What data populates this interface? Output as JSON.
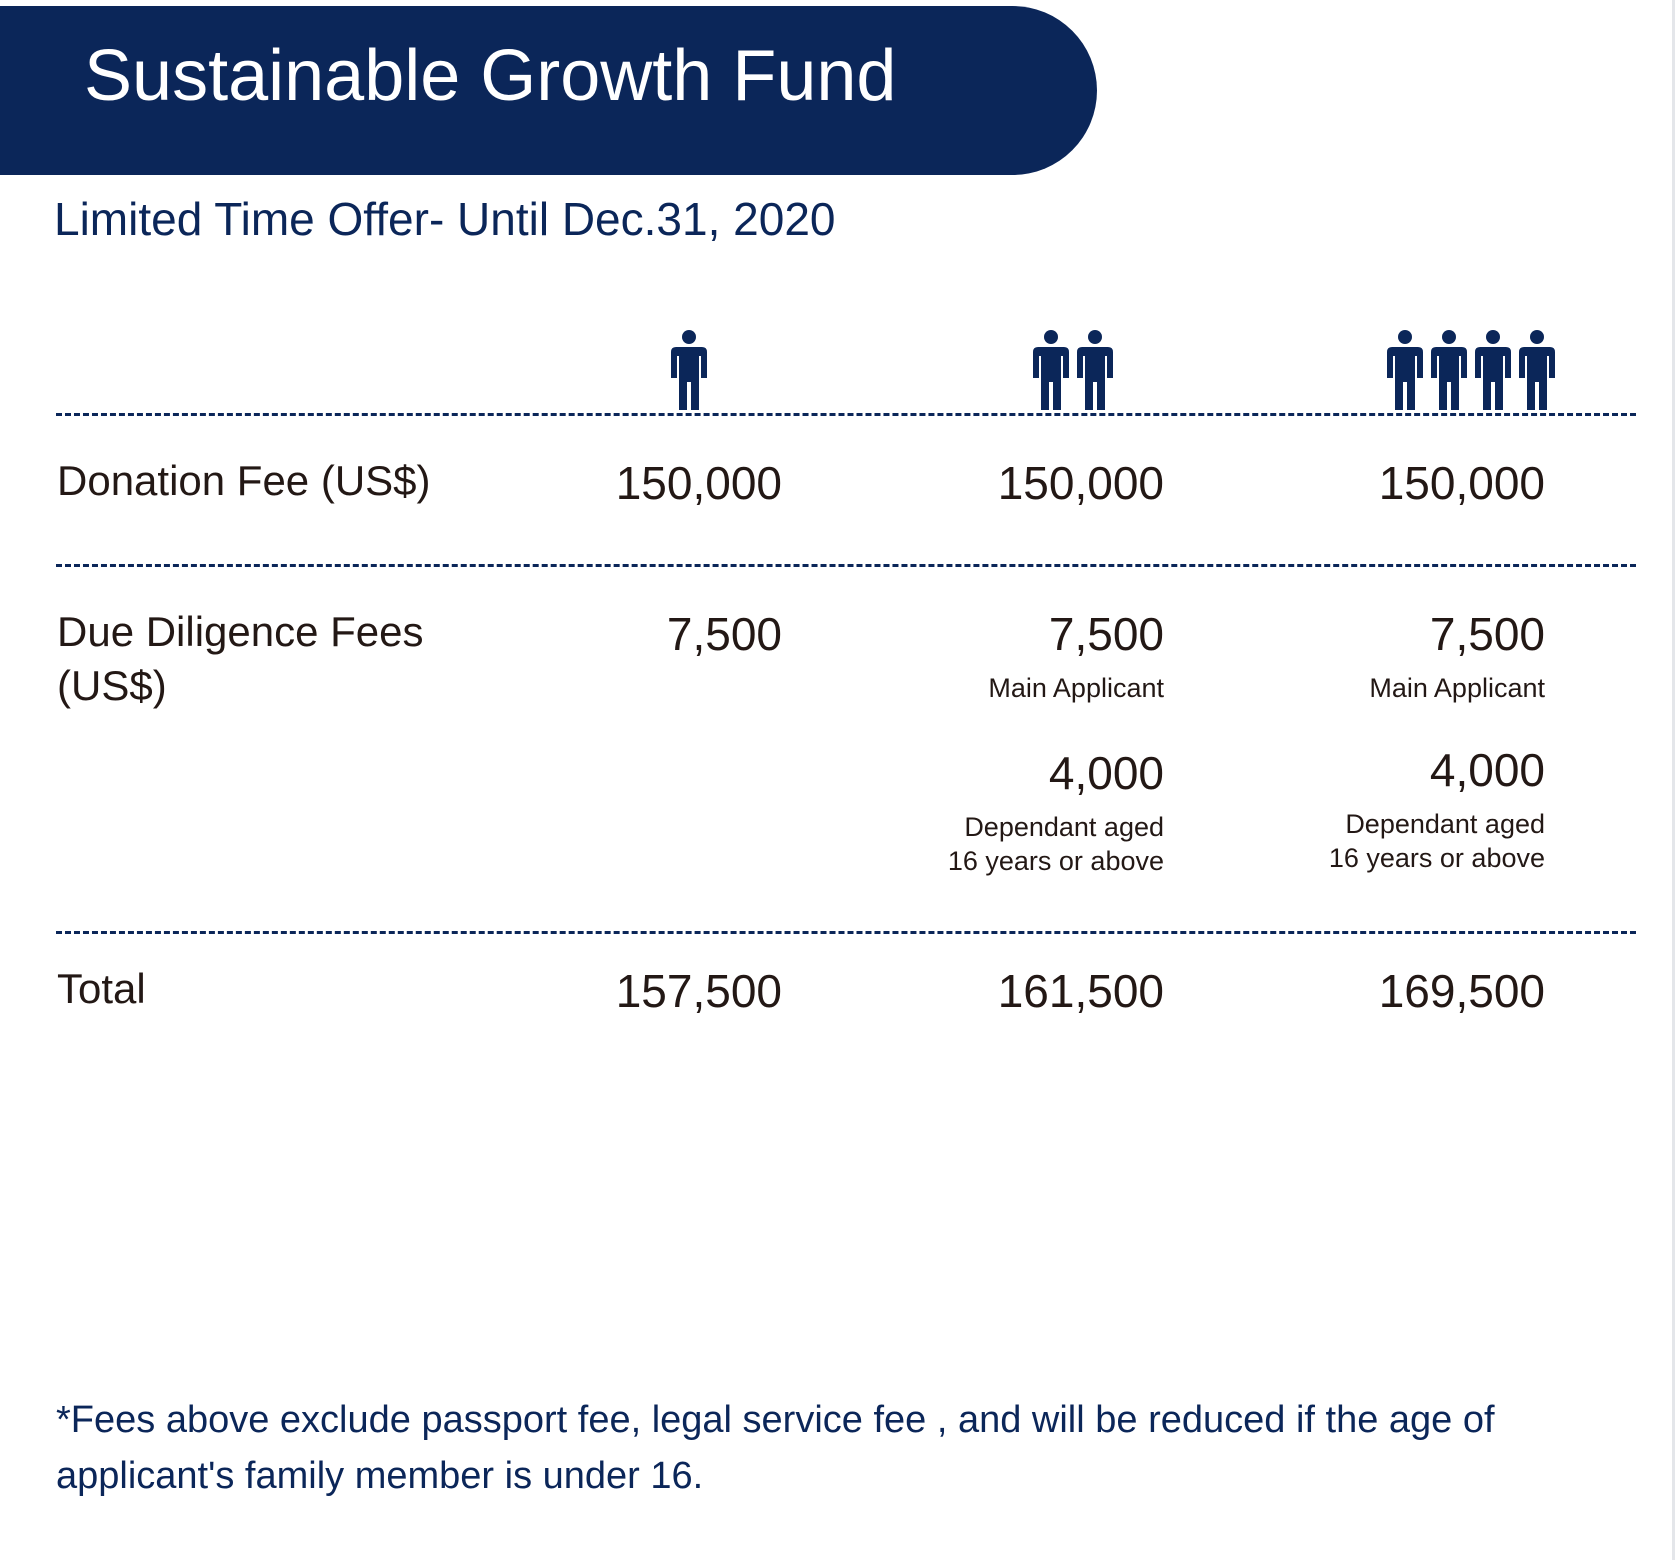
{
  "colors": {
    "navy": "#0b2659",
    "text": "#231815"
  },
  "header": {
    "title": "Sustainable Growth Fund"
  },
  "subtitle": "Limited Time Offer- Until Dec.31, 2020",
  "columns": [
    {
      "people_count": 1,
      "icon": "person-icon"
    },
    {
      "people_count": 2,
      "icon": "person-icon"
    },
    {
      "people_count": 4,
      "icon": "person-icon"
    }
  ],
  "rows": {
    "donation": {
      "label": "Donation Fee  (US$)",
      "values": [
        "150,000",
        "150,000",
        "150,000"
      ]
    },
    "due_diligence": {
      "label_line1": "Due Diligence Fees",
      "label_line2": "(US$)",
      "values": [
        "7,500",
        "7,500",
        "7,500"
      ],
      "main_note": "Main Applicant",
      "dependant_value": "4,000",
      "dependant_note_line1": "Dependant aged",
      "dependant_note_line2": "16 years or above"
    },
    "total": {
      "label": "Total",
      "values": [
        "157,500",
        "161,500",
        "169,500"
      ]
    }
  },
  "footnote": "*Fees above exclude passport fee, legal service fee , and will be reduced if the age of applicant's family member is under 16."
}
